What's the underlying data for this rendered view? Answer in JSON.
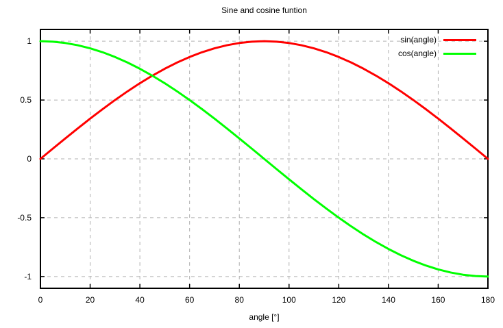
{
  "chart_data": {
    "type": "line",
    "title": "Sine and cosine funtion",
    "xlabel": "angle [°]",
    "ylabel": "",
    "xlim": [
      0,
      180
    ],
    "ylim": [
      -1.1,
      1.1
    ],
    "xticks": [
      0,
      20,
      40,
      60,
      80,
      100,
      120,
      140,
      160,
      180
    ],
    "yticks": [
      -1,
      -0.5,
      0,
      0.5,
      1
    ],
    "grid": true,
    "legend_position": "top-right",
    "x": [
      0,
      5,
      10,
      15,
      20,
      25,
      30,
      35,
      40,
      45,
      50,
      55,
      60,
      65,
      70,
      75,
      80,
      85,
      90,
      95,
      100,
      105,
      110,
      115,
      120,
      125,
      130,
      135,
      140,
      145,
      150,
      155,
      160,
      165,
      170,
      175,
      180
    ],
    "series": [
      {
        "name": "sin(angle)",
        "color": "#ff0000",
        "values": [
          0,
          0.0872,
          0.1736,
          0.2588,
          0.342,
          0.4226,
          0.5,
          0.5736,
          0.6428,
          0.7071,
          0.766,
          0.8192,
          0.866,
          0.9063,
          0.9397,
          0.9659,
          0.9848,
          0.9962,
          1,
          0.9962,
          0.9848,
          0.9659,
          0.9397,
          0.9063,
          0.866,
          0.8192,
          0.766,
          0.7071,
          0.6428,
          0.5736,
          0.5,
          0.4226,
          0.342,
          0.2588,
          0.1736,
          0.0872,
          0
        ]
      },
      {
        "name": "cos(angle)",
        "color": "#00ff00",
        "values": [
          1,
          0.9962,
          0.9848,
          0.9659,
          0.9397,
          0.9063,
          0.866,
          0.8192,
          0.766,
          0.7071,
          0.6428,
          0.5736,
          0.5,
          0.4226,
          0.342,
          0.2588,
          0.1736,
          0.0872,
          0,
          -0.0872,
          -0.1736,
          -0.2588,
          -0.342,
          -0.4226,
          -0.5,
          -0.5736,
          -0.6428,
          -0.7071,
          -0.766,
          -0.8192,
          -0.866,
          -0.9063,
          -0.9397,
          -0.9659,
          -0.9848,
          -0.9962,
          -1
        ]
      }
    ],
    "colors": {
      "background": "#ffffff",
      "border": "#000000",
      "grid": "#b0b0b0",
      "text": "#000000"
    }
  }
}
